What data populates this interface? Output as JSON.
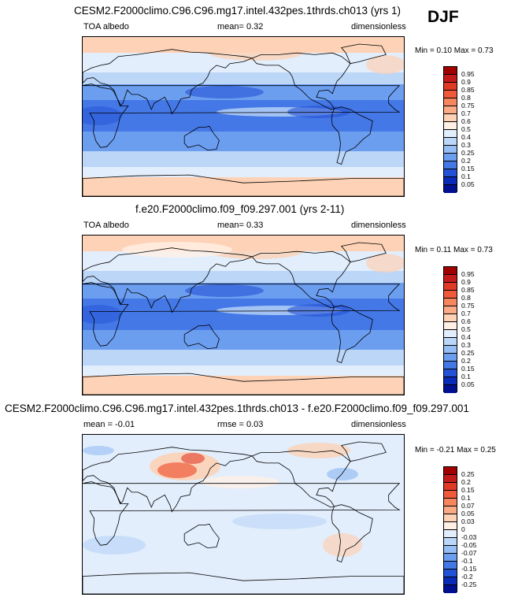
{
  "season": "DJF",
  "panels": [
    {
      "title": "CESM2.F2000climo.C96.C96.mg17.intel.432pes.1thrds.ch013 (yrs 1)",
      "left_label": "TOA albedo",
      "center_label": "mean=  0.32",
      "right_label": "dimensionless",
      "minmax": "Min =  0.10 Max =  0.73",
      "colorbar": {
        "levels": [
          "0.95",
          "0.9",
          "0.85",
          "0.8",
          "0.75",
          "0.7",
          "0.6",
          "0.5",
          "0.4",
          "0.3",
          "0.25",
          "0.2",
          "0.15",
          "0.1",
          "0.05"
        ],
        "colors": [
          "#a00000",
          "#c41a1a",
          "#e03a26",
          "#f05a3a",
          "#f7855e",
          "#fbaa86",
          "#fdd2b6",
          "#fff0e6",
          "#e2eefc",
          "#bcd6f8",
          "#96bdf4",
          "#6c9ef0",
          "#4478e6",
          "#2452d6",
          "#0a2ab8",
          "#001090"
        ]
      },
      "range": {
        "min": 0.1,
        "max": 0.73,
        "mean": 0.32,
        "diverging": false
      }
    },
    {
      "title": "f.e20.F2000climo.f09_f09.297.001 (yrs 2-11)",
      "left_label": "TOA albedo",
      "center_label": "mean=  0.33",
      "right_label": "dimensionless",
      "minmax": "Min =  0.11 Max =  0.73",
      "colorbar": {
        "levels": [
          "0.95",
          "0.9",
          "0.85",
          "0.8",
          "0.75",
          "0.7",
          "0.6",
          "0.5",
          "0.4",
          "0.3",
          "0.25",
          "0.2",
          "0.15",
          "0.1",
          "0.05"
        ],
        "colors": [
          "#a00000",
          "#c41a1a",
          "#e03a26",
          "#f05a3a",
          "#f7855e",
          "#fbaa86",
          "#fdd2b6",
          "#fff0e6",
          "#e2eefc",
          "#bcd6f8",
          "#96bdf4",
          "#6c9ef0",
          "#4478e6",
          "#2452d6",
          "#0a2ab8",
          "#001090"
        ]
      },
      "range": {
        "min": 0.11,
        "max": 0.73,
        "mean": 0.33,
        "diverging": false
      }
    },
    {
      "title": "CESM2.F2000climo.C96.C96.mg17.intel.432pes.1thrds.ch013 - f.e20.F2000climo.f09_f09.297.001",
      "left_label": "mean =  -0.01",
      "center_label": "rmse =  0.03",
      "right_label": "dimensionless",
      "minmax": "Min =  -0.21 Max =  0.25",
      "colorbar": {
        "levels": [
          "0.25",
          "0.2",
          "0.15",
          "0.1",
          "0.07",
          "0.05",
          "0.03",
          "0",
          "-0.03",
          "-0.05",
          "-0.07",
          "-0.1",
          "-0.15",
          "-0.2",
          "-0.25"
        ],
        "colors": [
          "#a00000",
          "#c41a1a",
          "#e03a26",
          "#f05a3a",
          "#f7855e",
          "#fbaa86",
          "#fdd2b6",
          "#fff0e6",
          "#e2eefc",
          "#bcd6f8",
          "#96bdf4",
          "#6c9ef0",
          "#4478e6",
          "#2452d6",
          "#0a2ab8",
          "#001090"
        ]
      },
      "range": {
        "min": -0.21,
        "max": 0.25,
        "mean": -0.01,
        "diverging": true
      }
    }
  ]
}
